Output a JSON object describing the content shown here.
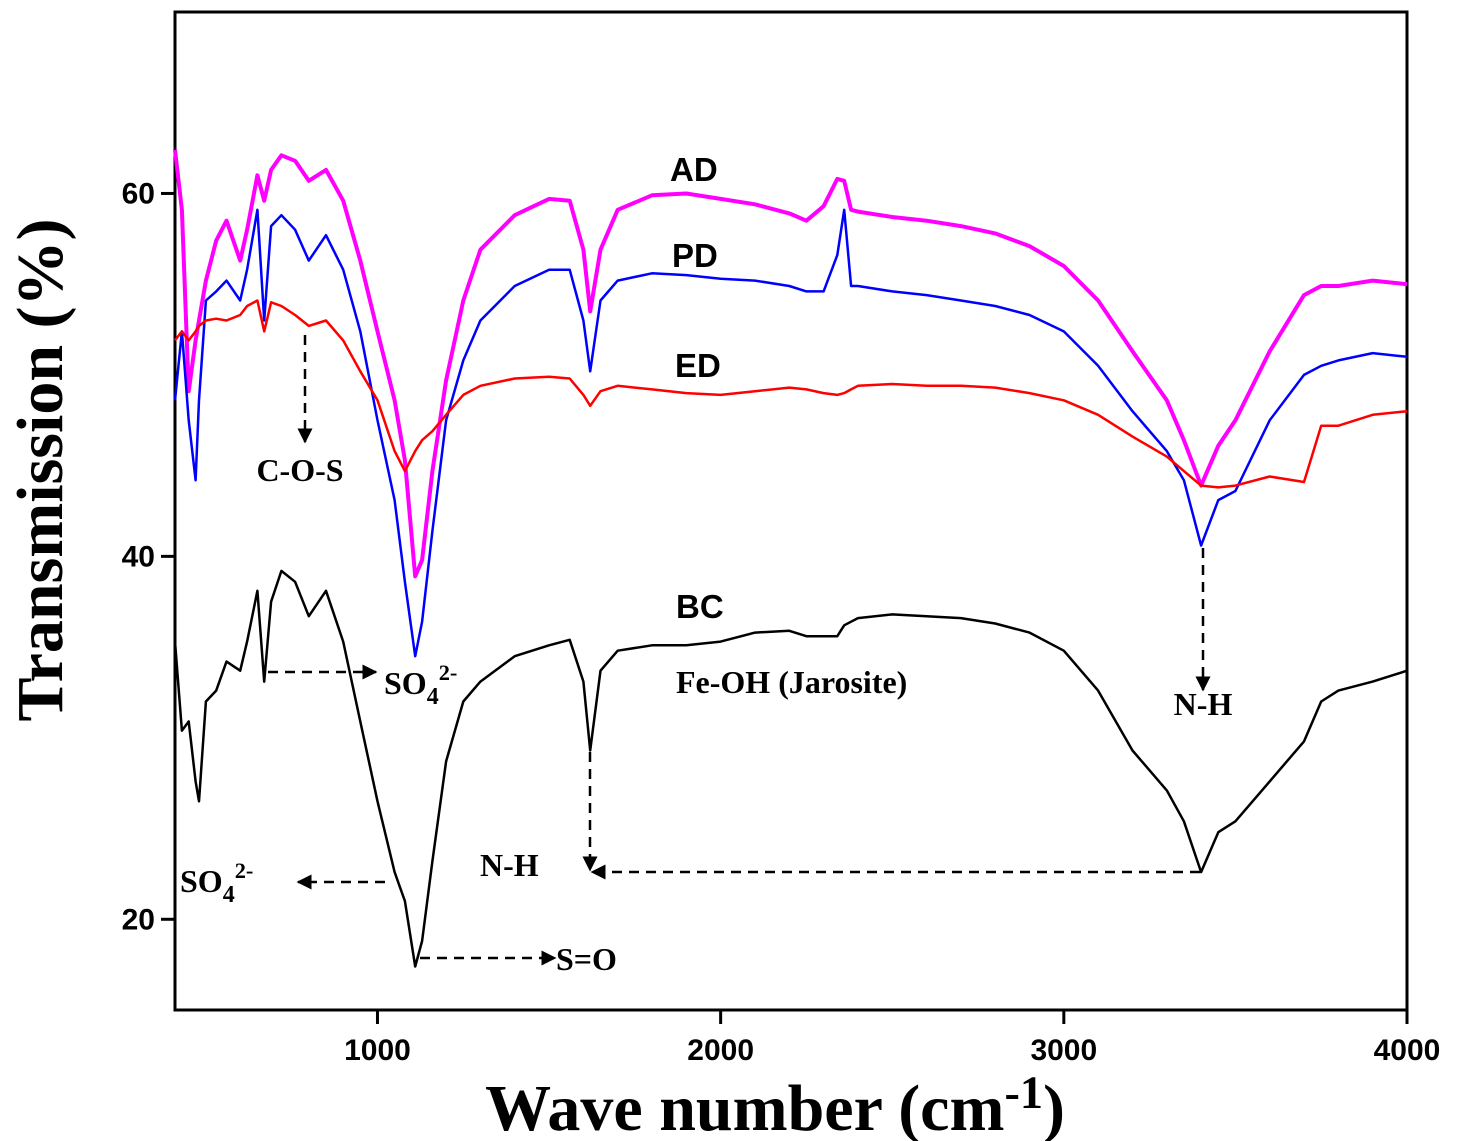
{
  "chart_data": {
    "type": "line",
    "x_label": {
      "text": "Wave number (cm",
      "sup": "-1",
      "tail": ")"
    },
    "y_label": {
      "text": "Transmission (%)"
    },
    "xlim": [
      410,
      4000
    ],
    "ylim": [
      15,
      70
    ],
    "xticks": [
      1000,
      2000,
      3000,
      4000
    ],
    "yticks": [
      20,
      40,
      60
    ],
    "x": [
      410,
      430,
      450,
      470,
      480,
      500,
      530,
      560,
      600,
      620,
      650,
      670,
      690,
      720,
      760,
      800,
      850,
      900,
      950,
      1000,
      1050,
      1080,
      1110,
      1130,
      1160,
      1200,
      1250,
      1300,
      1400,
      1500,
      1560,
      1600,
      1620,
      1650,
      1700,
      1800,
      1900,
      2000,
      2100,
      2200,
      2250,
      2300,
      2340,
      2360,
      2380,
      2400,
      2500,
      2600,
      2700,
      2800,
      2900,
      3000,
      3100,
      3200,
      3300,
      3350,
      3400,
      3450,
      3500,
      3600,
      3700,
      3750,
      3800,
      3900,
      4000
    ],
    "series": [
      {
        "name": "AD",
        "color": "#ff00ff",
        "values": [
          62.4,
          59.1,
          49.1,
          51.9,
          53,
          55.2,
          57.4,
          58.5,
          56.3,
          58,
          61,
          59.6,
          61.3,
          62.1,
          61.8,
          60.7,
          61.3,
          59.6,
          56.3,
          52.4,
          48.6,
          45.3,
          38.9,
          39.8,
          44.7,
          49.7,
          54.1,
          56.9,
          58.8,
          59.7,
          59.6,
          56.9,
          53.5,
          56.9,
          59.1,
          59.9,
          60,
          59.7,
          59.4,
          58.9,
          58.5,
          59.3,
          60.8,
          60.7,
          59.1,
          59,
          58.7,
          58.5,
          58.2,
          57.8,
          57.1,
          56,
          54.1,
          51.3,
          48.6,
          46.4,
          43.9,
          46.1,
          47.5,
          51.3,
          54.4,
          54.9,
          54.9,
          55.2,
          55
        ]
      },
      {
        "name": "PD",
        "color": "#0000ff",
        "values": [
          48.6,
          52.4,
          47.5,
          44.2,
          48.6,
          54.1,
          54.6,
          55.2,
          54.1,
          55.8,
          59.1,
          53,
          58.2,
          58.8,
          58,
          56.3,
          57.7,
          55.8,
          52.4,
          47.5,
          43.1,
          38.6,
          34.5,
          36.4,
          41.4,
          47.5,
          50.8,
          53,
          54.9,
          55.8,
          55.8,
          53,
          50.2,
          54.1,
          55.2,
          55.6,
          55.5,
          55.3,
          55.2,
          54.9,
          54.6,
          54.6,
          56.6,
          59.1,
          54.9,
          54.9,
          54.6,
          54.4,
          54.1,
          53.8,
          53.3,
          52.4,
          50.5,
          48,
          45.8,
          44.2,
          40.6,
          43.1,
          43.6,
          47.5,
          50,
          50.5,
          50.8,
          51.2,
          51
        ]
      },
      {
        "name": "ED",
        "color": "#ff0000",
        "values": [
          51.9,
          52.4,
          51.9,
          52.4,
          52.7,
          53,
          53.1,
          53,
          53.3,
          53.8,
          54.1,
          52.4,
          54,
          53.8,
          53.3,
          52.7,
          53,
          51.9,
          50.2,
          48.6,
          45.8,
          44.7,
          45.8,
          46.4,
          46.9,
          47.8,
          48.9,
          49.4,
          49.8,
          49.9,
          49.8,
          48.9,
          48.3,
          49.1,
          49.4,
          49.2,
          49,
          48.9,
          49.1,
          49.3,
          49.2,
          49,
          48.9,
          49,
          49.2,
          49.4,
          49.5,
          49.4,
          49.4,
          49.3,
          49,
          48.6,
          47.8,
          46.6,
          45.5,
          44.7,
          43.9,
          43.8,
          43.9,
          44.4,
          44.1,
          47.2,
          47.2,
          47.8,
          48
        ]
      },
      {
        "name": "BC",
        "color": "#000000",
        "values": [
          35.3,
          30.4,
          30.9,
          27.6,
          26.5,
          32,
          32.6,
          34.2,
          33.7,
          35.3,
          38.1,
          33.1,
          37.5,
          39.2,
          38.6,
          36.7,
          38.1,
          35.3,
          30.9,
          26.5,
          22.6,
          21,
          17.4,
          18.8,
          23.2,
          28.7,
          32,
          33.1,
          34.5,
          35.1,
          35.4,
          33.1,
          29.3,
          33.7,
          34.8,
          35.1,
          35.1,
          35.3,
          35.8,
          35.9,
          35.6,
          35.6,
          35.6,
          36.2,
          36.4,
          36.6,
          36.8,
          36.7,
          36.6,
          36.3,
          35.8,
          34.8,
          32.6,
          29.3,
          27.1,
          25.4,
          22.6,
          24.8,
          25.4,
          27.6,
          29.8,
          32,
          32.6,
          33.1,
          33.7
        ]
      }
    ],
    "annotations": [
      {
        "text": "C-O-S"
      },
      {
        "text": "SO",
        "sub": "4",
        "sup": "2-"
      },
      {
        "text": "Fe-OH (Jarosite)"
      },
      {
        "text": "N-H"
      },
      {
        "text": "SO",
        "sub": "4",
        "sup": "2-"
      },
      {
        "text": "N-H"
      },
      {
        "text": "S=O"
      }
    ]
  }
}
